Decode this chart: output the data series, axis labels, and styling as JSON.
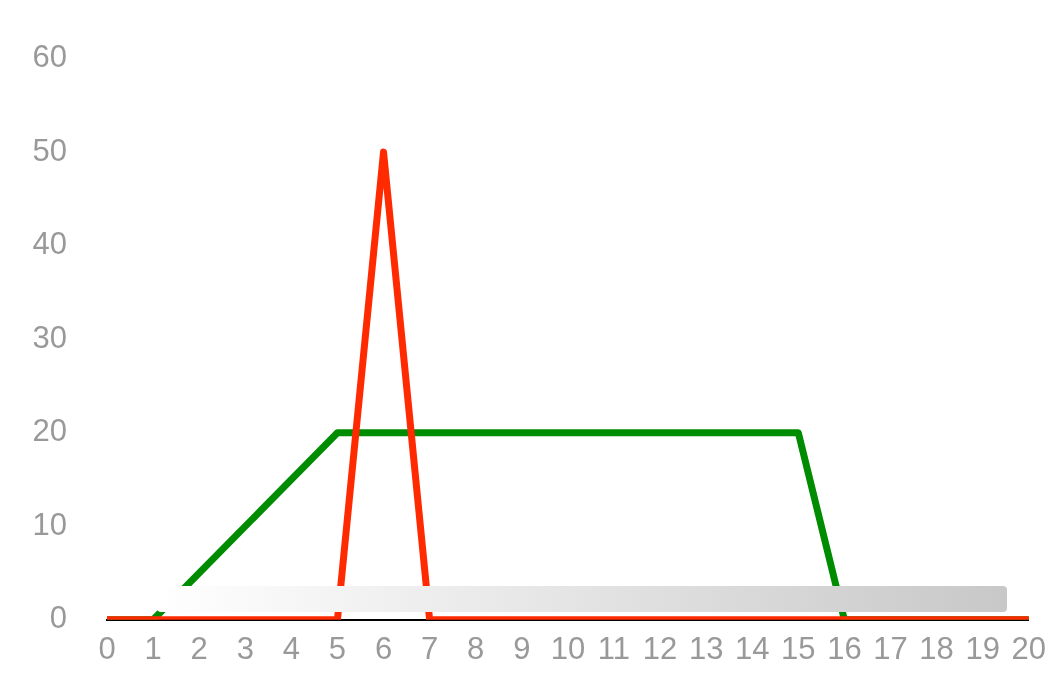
{
  "chart_data": {
    "type": "line",
    "xlim": [
      0,
      20
    ],
    "xticks": [
      0,
      1,
      2,
      3,
      4,
      5,
      6,
      7,
      8,
      9,
      10,
      11,
      12,
      13,
      14,
      15,
      16,
      17,
      18,
      19,
      20
    ],
    "ylim": [
      0,
      60
    ],
    "yticks": [
      0,
      10,
      20,
      30,
      40,
      50,
      60
    ],
    "grid": false,
    "legend": false,
    "marker": "none",
    "line_style": "solid",
    "series": [
      {
        "color": "#008c00",
        "x": [
          0,
          1,
          5,
          15,
          16,
          20
        ],
        "values": [
          0,
          0,
          20,
          20,
          0,
          0
        ]
      },
      {
        "color": "#ff2a00",
        "x": [
          0,
          5,
          6,
          7,
          20
        ],
        "values": [
          0,
          0,
          50,
          0,
          0
        ]
      }
    ]
  }
}
